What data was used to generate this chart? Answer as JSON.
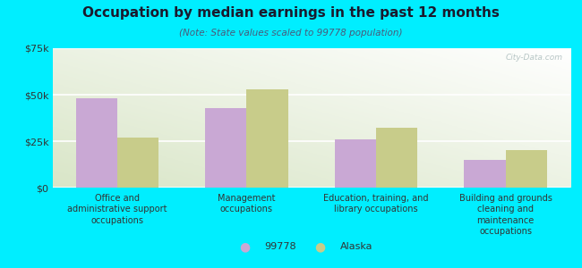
{
  "title": "Occupation by median earnings in the past 12 months",
  "subtitle": "(Note: State values scaled to 99778 population)",
  "categories": [
    "Office and\nadministrative support\noccupations",
    "Management\noccupations",
    "Education, training, and\nlibrary occupations",
    "Building and grounds\ncleaning and\nmaintenance\noccupations"
  ],
  "values_99778": [
    48000,
    43000,
    26000,
    15000
  ],
  "values_alaska": [
    27000,
    53000,
    32000,
    20000
  ],
  "color_99778": "#c9a8d4",
  "color_alaska": "#c8cc8a",
  "ylim": [
    0,
    75000
  ],
  "yticks": [
    0,
    25000,
    50000,
    75000
  ],
  "ytick_labels": [
    "$0",
    "$25k",
    "$50k",
    "$75k"
  ],
  "legend_99778": "99778",
  "legend_alaska": "Alaska",
  "background_outer": "#00eeff",
  "watermark": "City-Data.com",
  "bar_width": 0.32,
  "title_color": "#1a1a2e",
  "subtitle_color": "#4a4a6a"
}
